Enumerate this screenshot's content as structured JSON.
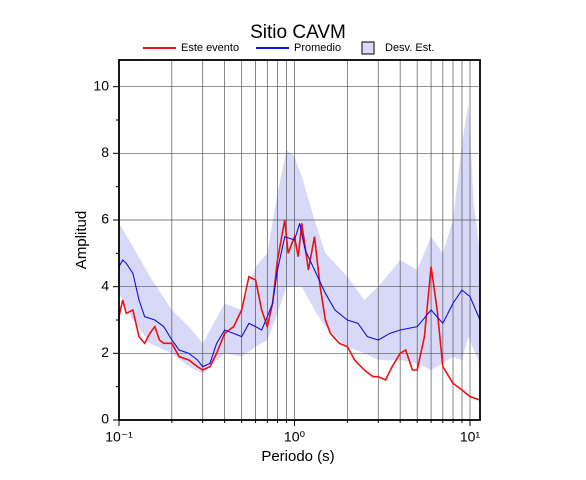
{
  "chart_data": {
    "type": "line",
    "title": "Sitio CAVM",
    "x_label": "Periodo (s)",
    "y_label": "Amplitud",
    "xscale": "log",
    "grid": true,
    "xlim": [
      0.1,
      11.4
    ],
    "ylim": [
      0,
      10.8
    ],
    "xticks": [
      {
        "value": 0.1,
        "label": "10⁻¹"
      },
      {
        "value": 1,
        "label": "10⁰"
      },
      {
        "value": 10,
        "label": "10¹"
      }
    ],
    "xminorticks": [
      0.2,
      0.3,
      0.4,
      0.5,
      0.6,
      0.7,
      0.8,
      0.9,
      2,
      3,
      4,
      5,
      6,
      7,
      8,
      9
    ],
    "yticks": [
      0,
      2,
      4,
      6,
      8,
      10
    ],
    "yminorticks": [
      1,
      3,
      5,
      7,
      9
    ],
    "series": [
      {
        "name": "Este evento",
        "color": "#ee1111",
        "x": [
          0.1,
          0.105,
          0.11,
          0.12,
          0.13,
          0.14,
          0.15,
          0.16,
          0.17,
          0.18,
          0.2,
          0.22,
          0.25,
          0.28,
          0.3,
          0.33,
          0.36,
          0.4,
          0.45,
          0.5,
          0.55,
          0.6,
          0.65,
          0.7,
          0.75,
          0.8,
          0.88,
          0.92,
          1.0,
          1.05,
          1.1,
          1.2,
          1.3,
          1.4,
          1.5,
          1.6,
          1.8,
          2.0,
          2.2,
          2.5,
          2.8,
          3.0,
          3.3,
          3.6,
          4.0,
          4.3,
          4.7,
          5.0,
          5.5,
          6.0,
          6.5,
          7.0,
          8.0,
          9.0,
          10,
          11.4
        ],
        "values": [
          3.1,
          3.6,
          3.2,
          3.3,
          2.5,
          2.3,
          2.6,
          2.8,
          2.4,
          2.3,
          2.3,
          1.9,
          1.8,
          1.6,
          1.5,
          1.6,
          2.0,
          2.6,
          2.8,
          3.3,
          4.3,
          4.2,
          3.3,
          2.8,
          3.5,
          4.8,
          6.0,
          5.0,
          5.5,
          4.9,
          5.9,
          4.5,
          5.5,
          4.0,
          3.0,
          2.6,
          2.3,
          2.2,
          1.8,
          1.5,
          1.3,
          1.3,
          1.2,
          1.6,
          2.0,
          2.1,
          1.5,
          1.5,
          2.5,
          4.6,
          3.3,
          1.6,
          1.1,
          0.9,
          0.7,
          0.6
        ]
      },
      {
        "name": "Promedio",
        "color": "#1111dd",
        "x": [
          0.1,
          0.105,
          0.11,
          0.12,
          0.13,
          0.14,
          0.16,
          0.18,
          0.2,
          0.22,
          0.25,
          0.28,
          0.3,
          0.33,
          0.36,
          0.4,
          0.45,
          0.5,
          0.55,
          0.6,
          0.65,
          0.7,
          0.75,
          0.8,
          0.88,
          1.0,
          1.07,
          1.15,
          1.3,
          1.5,
          1.7,
          2.0,
          2.3,
          2.6,
          3.0,
          3.5,
          4.0,
          5.0,
          6.0,
          7.0,
          8.0,
          9.0,
          10,
          11.4
        ],
        "values": [
          4.6,
          4.8,
          4.7,
          4.4,
          3.6,
          3.1,
          3.0,
          2.8,
          2.4,
          2.1,
          2.0,
          1.8,
          1.6,
          1.7,
          2.3,
          2.7,
          2.6,
          2.5,
          2.9,
          2.8,
          2.7,
          3.1,
          3.5,
          4.5,
          5.5,
          5.4,
          5.9,
          5.1,
          4.5,
          3.8,
          3.3,
          3.0,
          2.9,
          2.5,
          2.4,
          2.6,
          2.7,
          2.8,
          3.3,
          2.9,
          3.5,
          3.9,
          3.7,
          3.0
        ]
      }
    ],
    "band": {
      "name": "Desv. Est.",
      "color": "#d8d8f8",
      "x": [
        0.1,
        0.12,
        0.15,
        0.2,
        0.25,
        0.3,
        0.4,
        0.5,
        0.6,
        0.7,
        0.8,
        0.9,
        1.0,
        1.1,
        1.3,
        1.5,
        2.0,
        2.5,
        3.0,
        4.0,
        5.0,
        6.0,
        7.0,
        8.0,
        9.0,
        9.8,
        10.5,
        11.4
      ],
      "lower": [
        3.8,
        3.0,
        2.3,
        2.0,
        1.6,
        1.4,
        2.0,
        1.9,
        2.2,
        2.4,
        3.2,
        4.0,
        4.0,
        4.0,
        3.3,
        2.8,
        2.2,
        2.0,
        1.8,
        1.8,
        1.7,
        1.5,
        1.7,
        1.9,
        1.8,
        2.5,
        2.1,
        1.7
      ],
      "upper": [
        5.9,
        5.2,
        4.3,
        3.3,
        2.8,
        2.3,
        3.5,
        3.3,
        4.6,
        5.0,
        6.8,
        8.1,
        7.9,
        7.3,
        6.0,
        5.0,
        4.3,
        3.6,
        4.0,
        4.8,
        4.5,
        5.5,
        5.0,
        6.0,
        8.3,
        9.5,
        6.5,
        5.0
      ]
    }
  }
}
